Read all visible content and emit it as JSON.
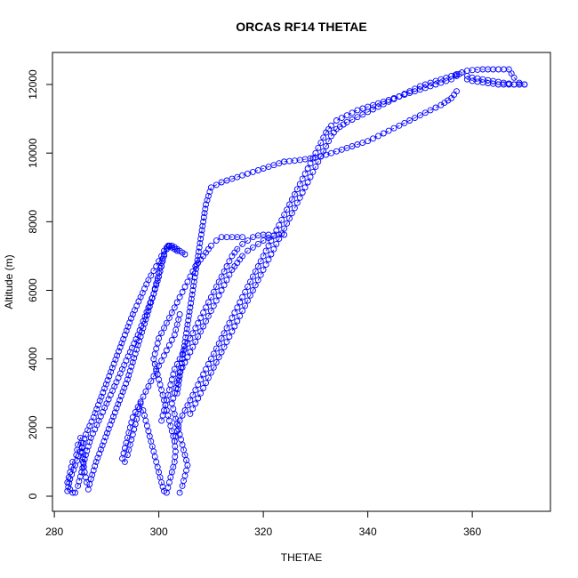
{
  "chart_data": {
    "type": "scatter",
    "title": "ORCAS RF14 THETAE",
    "xlabel": "THETAE",
    "ylabel": "Altitude (m)",
    "xlim": [
      280,
      372
    ],
    "ylim": [
      0,
      12800
    ],
    "x_ticks": [
      280,
      300,
      320,
      340,
      360
    ],
    "y_ticks": [
      0,
      2000,
      4000,
      6000,
      8000,
      10000,
      12000
    ],
    "x_tick_labels": [
      "280",
      "300",
      "320",
      "340",
      "360"
    ],
    "y_tick_labels": [
      "0",
      "2000",
      "4000",
      "6000",
      "8000",
      "10000",
      "12000"
    ],
    "grid": false,
    "legend": "none",
    "series_color": "#0000ff",
    "series": [
      {
        "x": [
          283.5,
          283,
          282.5,
          283,
          283.5,
          284.2,
          284.5,
          285,
          285.3,
          285.5,
          285.8,
          286.2,
          286.5,
          287,
          288,
          289.5,
          291,
          292.5,
          294,
          295,
          296,
          297,
          298,
          299,
          300,
          300.5,
          301,
          301.5,
          301.8,
          302,
          302.5,
          303,
          303.5
        ],
        "y": [
          100,
          200,
          400,
          700,
          1000,
          1200,
          1500,
          1700,
          1400,
          1000,
          700,
          400,
          200,
          500,
          1000,
          1600,
          2200,
          2800,
          3400,
          3900,
          4400,
          4900,
          5400,
          5900,
          6400,
          6700,
          7000,
          7200,
          7300,
          7300,
          7250,
          7200,
          7150
        ]
      },
      {
        "x": [
          284,
          284.5,
          285.2,
          286,
          287,
          288.5,
          290,
          291.5,
          293,
          294.5,
          296,
          297,
          298,
          299,
          299.5,
          300,
          300.5,
          301,
          301.5,
          302,
          302.5,
          303,
          303.5,
          304,
          304.5,
          305
        ],
        "y": [
          100,
          300,
          700,
          1200,
          1700,
          2200,
          2700,
          3200,
          3700,
          4200,
          4700,
          5100,
          5500,
          5900,
          6200,
          6500,
          6800,
          7050,
          7200,
          7280,
          7300,
          7260,
          7200,
          7150,
          7100,
          7050
        ]
      },
      {
        "x": [
          282.5,
          283,
          284,
          285,
          286,
          287.5,
          289,
          290.5,
          292,
          293.5,
          295,
          296.5,
          298,
          299.5,
          300.5,
          301,
          301.5
        ],
        "y": [
          150,
          500,
          900,
          1300,
          1800,
          2300,
          2900,
          3500,
          4100,
          4700,
          5300,
          5800,
          6300,
          6700,
          7000,
          7150,
          7250
        ]
      },
      {
        "x": [
          301,
          300.5,
          300,
          299.5,
          299,
          298.5,
          298,
          297.5,
          297,
          296.5,
          296,
          295.5,
          295,
          294.5,
          294,
          293.5,
          293,
          293.5,
          294,
          294.5,
          295,
          296,
          297,
          298,
          299,
          300,
          301,
          302,
          303,
          303.5,
          304
        ],
        "y": [
          150,
          400,
          700,
          1000,
          1300,
          1600,
          1900,
          2200,
          2500,
          2700,
          2400,
          2100,
          1800,
          1500,
          1200,
          1000,
          1100,
          1400,
          1700,
          2000,
          2300,
          2600,
          2900,
          3200,
          3500,
          3800,
          4100,
          4400,
          4700,
          5000,
          5300
        ]
      },
      {
        "x": [
          301.5,
          302,
          302.5,
          303,
          303.2,
          303,
          302.5,
          302,
          301.5,
          301,
          300.5,
          300,
          299.5,
          299,
          299.5,
          300,
          301,
          302,
          303,
          304,
          305,
          306,
          307,
          308,
          309,
          310,
          311,
          312,
          313,
          314,
          315,
          316
        ],
        "y": [
          100,
          400,
          700,
          1000,
          1300,
          1600,
          1900,
          2200,
          2500,
          2800,
          3100,
          3400,
          3700,
          4000,
          4300,
          4600,
          4900,
          5200,
          5500,
          5800,
          6100,
          6400,
          6700,
          6900,
          7100,
          7300,
          7450,
          7550,
          7550,
          7550,
          7550,
          7550
        ]
      },
      {
        "x": [
          304,
          304.5,
          305,
          305.5,
          305,
          304.5,
          304,
          303.5,
          303,
          302.5,
          303,
          303.5,
          304,
          305,
          306,
          307,
          308,
          309,
          310,
          311,
          312,
          313,
          314,
          315,
          316,
          317,
          318,
          319,
          320,
          321,
          322,
          323,
          324
        ],
        "y": [
          100,
          300,
          600,
          900,
          1200,
          1500,
          1800,
          2100,
          2400,
          2700,
          3000,
          3300,
          3600,
          3900,
          4200,
          4500,
          4800,
          5100,
          5400,
          5700,
          6000,
          6300,
          6600,
          6800,
          7000,
          7150,
          7250,
          7350,
          7450,
          7530,
          7590,
          7620,
          7620
        ]
      },
      {
        "x": [
          300.5,
          301,
          301.5,
          302,
          302.5,
          303,
          304,
          305,
          306,
          307,
          308,
          309,
          310,
          311,
          312,
          313,
          314,
          315,
          316,
          317,
          318,
          319,
          320,
          321
        ],
        "y": [
          2200,
          2500,
          2800,
          3100,
          3400,
          3700,
          4000,
          4300,
          4600,
          4900,
          5200,
          5500,
          5800,
          6100,
          6400,
          6700,
          7000,
          7200,
          7350,
          7450,
          7550,
          7600,
          7620,
          7620
        ]
      },
      {
        "x": [
          303,
          303.5,
          304,
          305,
          306,
          307,
          308,
          309,
          310,
          311,
          312,
          313,
          314,
          315,
          316,
          317,
          318,
          319,
          320,
          321,
          322,
          323,
          324,
          325,
          326,
          327,
          328,
          329,
          330,
          331,
          332,
          333,
          334,
          336,
          338,
          340,
          342,
          344,
          346,
          348,
          350,
          352,
          354,
          356,
          357
        ],
        "y": [
          1600,
          1900,
          2200,
          2500,
          2800,
          3100,
          3400,
          3700,
          4000,
          4300,
          4600,
          4900,
          5200,
          5500,
          5800,
          6100,
          6400,
          6700,
          7000,
          7300,
          7600,
          7900,
          8200,
          8500,
          8800,
          9100,
          9400,
          9700,
          10000,
          10300,
          10600,
          10800,
          10950,
          11100,
          11250,
          11350,
          11450,
          11550,
          11650,
          11750,
          11850,
          11950,
          12050,
          12150,
          12250
        ]
      },
      {
        "x": [
          306,
          307,
          308,
          309,
          310,
          311,
          312,
          313,
          314,
          315,
          316,
          317,
          318,
          319,
          320,
          321,
          322,
          323,
          324,
          325,
          326,
          327,
          328,
          329,
          330,
          331,
          332,
          333,
          334,
          336,
          338,
          340,
          342,
          344,
          346,
          348,
          350,
          352,
          354,
          356,
          357.5
        ],
        "y": [
          2400,
          2700,
          3000,
          3300,
          3600,
          3900,
          4200,
          4500,
          4800,
          5100,
          5400,
          5700,
          6000,
          6300,
          6600,
          6900,
          7200,
          7500,
          7800,
          8100,
          8400,
          8700,
          9000,
          9300,
          9600,
          9900,
          10200,
          10500,
          10700,
          10900,
          11050,
          11200,
          11350,
          11500,
          11650,
          11800,
          11950,
          12050,
          12150,
          12250,
          12300
        ]
      },
      {
        "x": [
          303.5,
          304,
          304.5,
          305,
          305.5,
          306,
          306.5,
          307,
          307.5,
          308,
          308.5,
          309,
          310,
          312,
          314,
          316,
          318,
          320,
          322,
          324
        ],
        "y": [
          3000,
          3500,
          4000,
          4500,
          5000,
          5500,
          6000,
          6500,
          7000,
          7500,
          8000,
          8500,
          9000,
          9150,
          9250,
          9350,
          9450,
          9550,
          9650,
          9750
        ]
      },
      {
        "x": [
          324,
          326,
          328,
          330,
          332,
          334,
          336,
          338,
          340,
          342,
          344,
          346,
          348,
          350,
          352,
          354,
          356,
          357
        ],
        "y": [
          9750,
          9780,
          9820,
          9870,
          9950,
          10050,
          10150,
          10250,
          10350,
          10500,
          10650,
          10800,
          10950,
          11100,
          11250,
          11400,
          11600,
          11800
        ]
      },
      {
        "x": [
          357,
          358,
          359,
          360,
          361,
          362,
          363,
          364,
          365,
          366,
          367,
          368,
          369,
          370,
          368,
          366,
          364,
          362,
          360,
          359
        ],
        "y": [
          12300,
          12350,
          12400,
          12420,
          12430,
          12440,
          12440,
          12440,
          12440,
          12440,
          12440,
          12200,
          12050,
          12000,
          12000,
          12050,
          12100,
          12150,
          12200,
          12250
        ]
      },
      {
        "x": [
          359,
          360,
          361,
          362,
          363,
          364,
          365,
          366,
          367,
          368,
          369,
          370
        ],
        "y": [
          12150,
          12100,
          12080,
          12060,
          12040,
          12020,
          12000,
          12000,
          12000,
          12000,
          12000,
          12000
        ]
      }
    ]
  }
}
